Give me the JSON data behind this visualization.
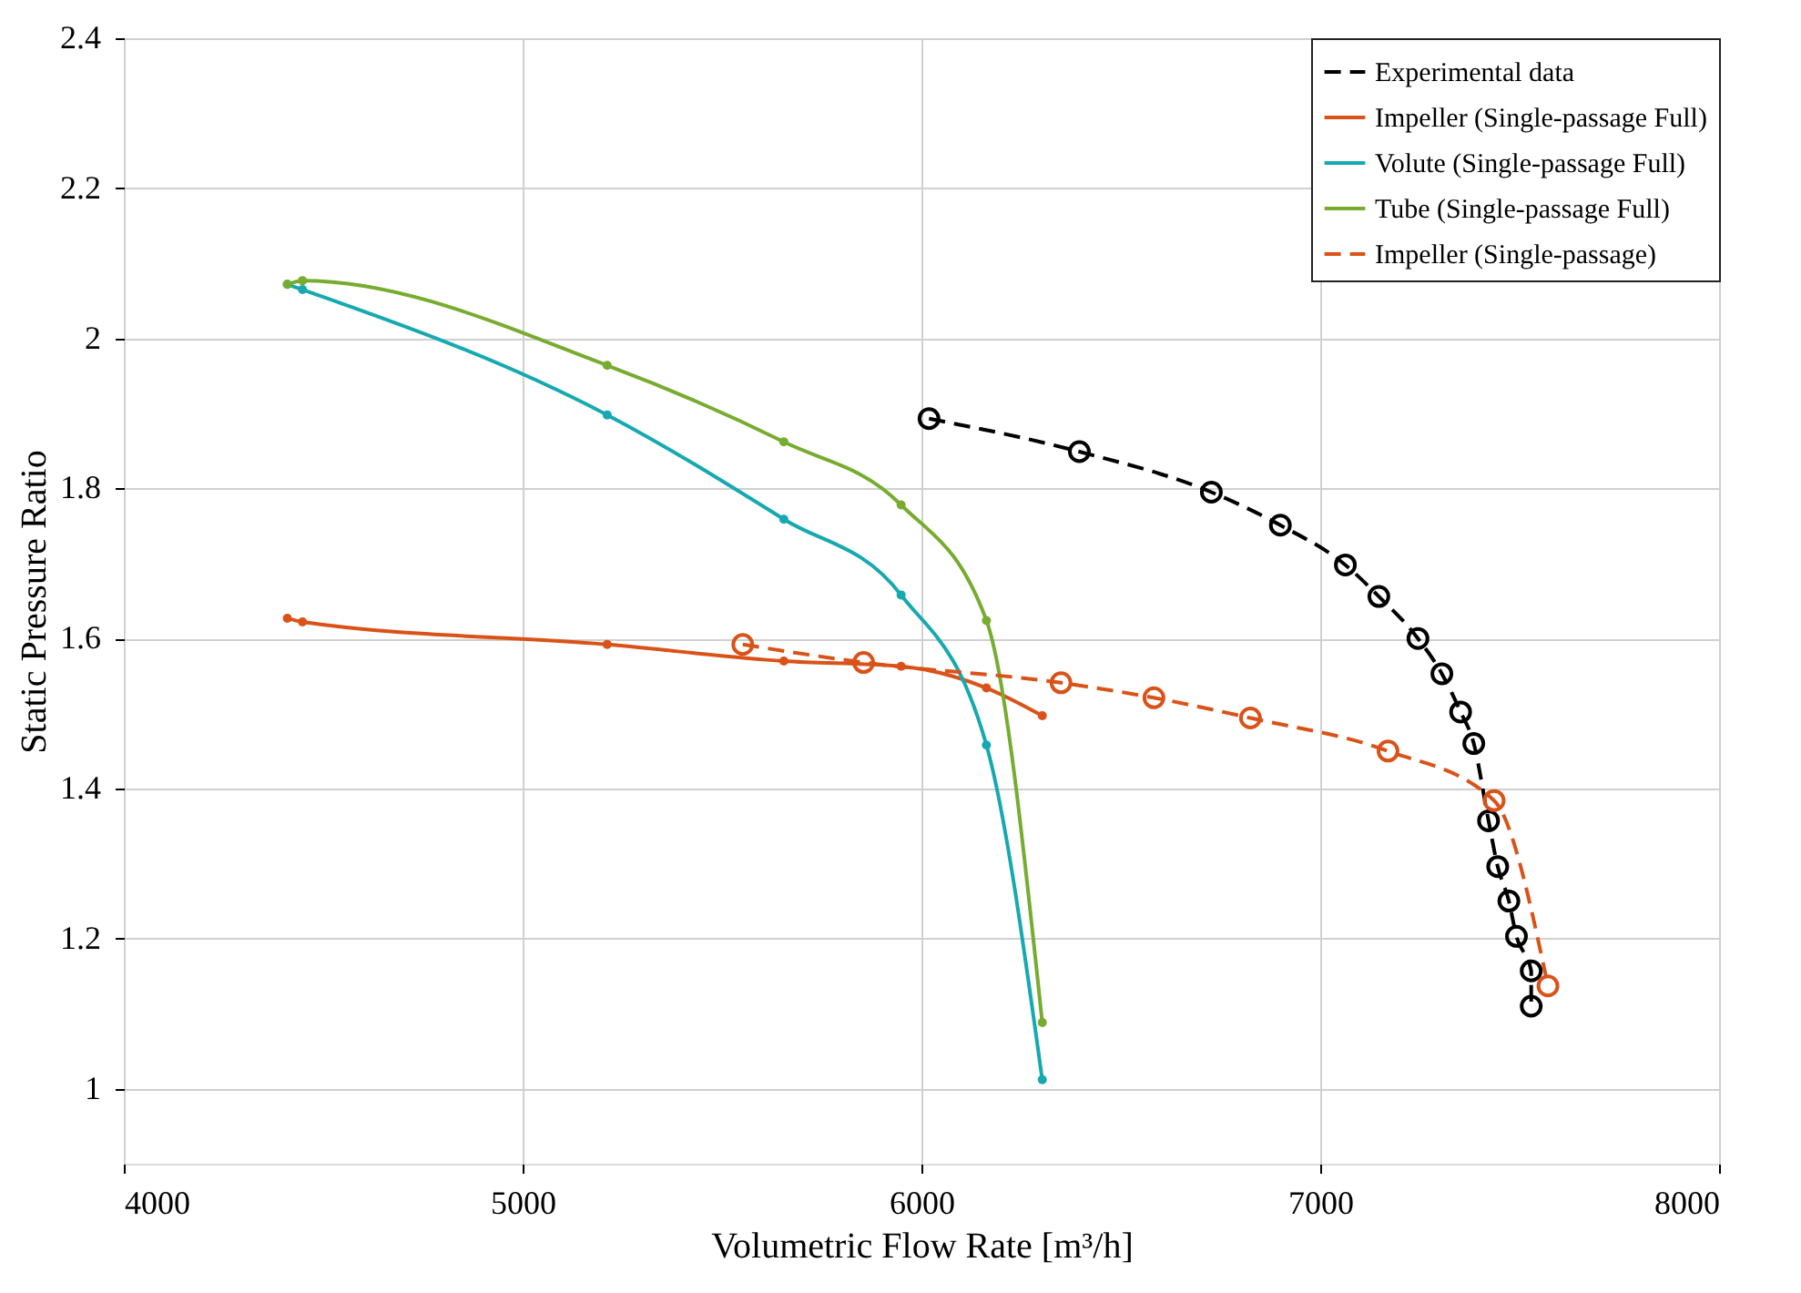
{
  "chart_data": {
    "type": "line",
    "xlabel": "Volumetric Flow Rate [m³/h]",
    "ylabel": "Static Pressure Ratio",
    "xlim": [
      4000,
      8000
    ],
    "xticks": [
      4000,
      5000,
      6000,
      7000,
      8000
    ],
    "ylim": [
      0.9,
      2.4
    ],
    "yticks": [
      1,
      1.2,
      1.4,
      1.6,
      1.8,
      2,
      2.2,
      2.4
    ],
    "grid": true,
    "legend": "top right",
    "series": [
      {
        "name": "Experimental data",
        "color": "#000000",
        "line_style": "dashed",
        "marker": "circle",
        "x": [
          6019,
          6396,
          6727,
          6900,
          7063,
          7147,
          7245,
          7305,
          7352,
          7385,
          7422,
          7445,
          7473,
          7492,
          7529,
          7529
        ],
        "values": [
          1.893,
          1.849,
          1.795,
          1.751,
          1.698,
          1.656,
          1.6,
          1.553,
          1.502,
          1.46,
          1.357,
          1.296,
          1.25,
          1.203,
          1.157,
          1.11
        ]
      },
      {
        "name": "Impeller (Single-passage Full)",
        "color": "#d95319",
        "line_style": "solid",
        "marker": "circle",
        "x": [
          4410,
          4448,
          5212,
          5655,
          5949,
          6163,
          6303
        ],
        "values": [
          1.627,
          1.622,
          1.592,
          1.57,
          1.563,
          1.534,
          1.497
        ]
      },
      {
        "name": "Volute (Single-passage Full)",
        "color": "#17a9b0",
        "line_style": "solid",
        "marker": "circle",
        "x": [
          4410,
          4448,
          5212,
          5655,
          5949,
          6163,
          6303
        ],
        "values": [
          2.072,
          2.065,
          1.898,
          1.759,
          1.658,
          1.458,
          1.012
        ]
      },
      {
        "name": "Tube (Single-passage Full)",
        "color": "#77ac30",
        "line_style": "solid",
        "marker": "circle",
        "x": [
          4410,
          4448,
          5212,
          5655,
          5949,
          6163,
          6303
        ],
        "values": [
          2.072,
          2.077,
          1.964,
          1.862,
          1.778,
          1.624,
          1.088
        ]
      },
      {
        "name": "Impeller (Single-passage)",
        "color": "#d95319",
        "line_style": "dashed",
        "marker": "circle",
        "x": [
          5552,
          5855,
          6350,
          6583,
          6825,
          7170,
          7436,
          7571
        ],
        "values": [
          1.592,
          1.568,
          1.541,
          1.521,
          1.494,
          1.45,
          1.384,
          1.137
        ]
      }
    ]
  }
}
